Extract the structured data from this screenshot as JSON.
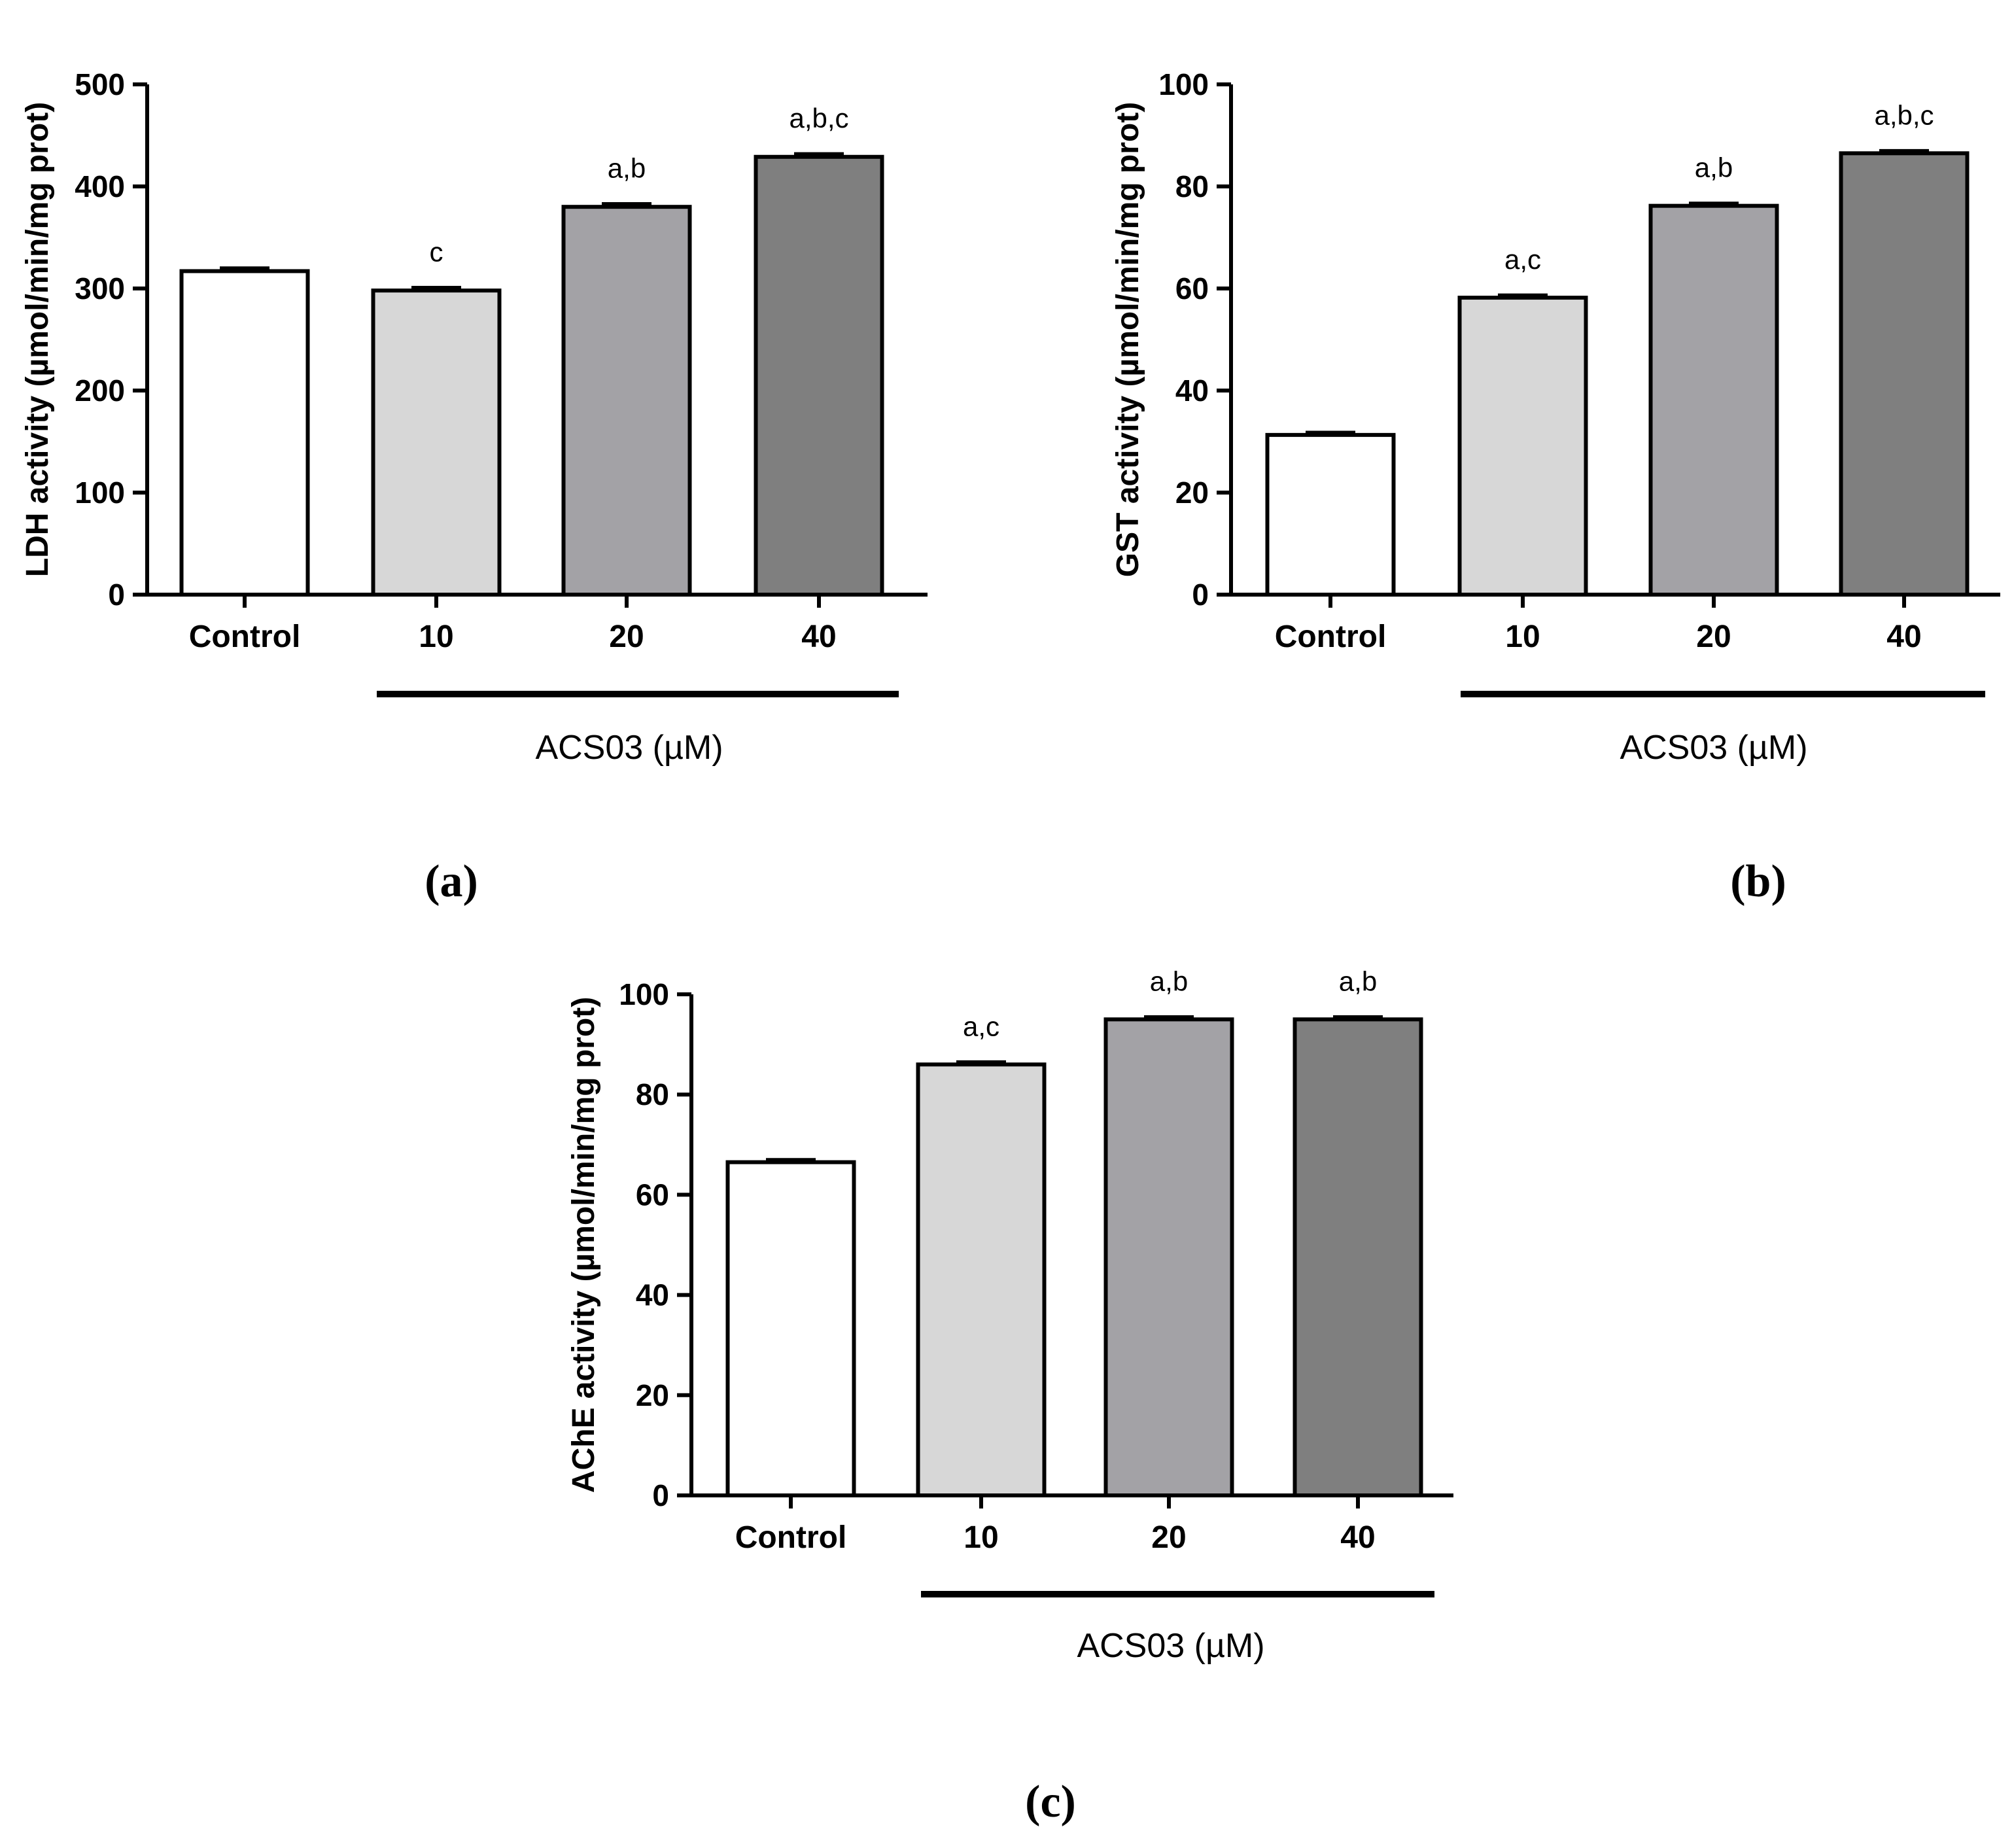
{
  "colors": {
    "control": "#ffffff",
    "dose10": "#d7d7d7",
    "dose20": "#a3a2a6",
    "dose40": "#7f7f7f",
    "axis": "#000000"
  },
  "chart_data": [
    {
      "type": "bar",
      "panel": "(a)",
      "categories": [
        "Control",
        "10",
        "20",
        "40"
      ],
      "values": [
        317,
        298,
        380,
        429
      ],
      "errors": [
        3,
        3,
        3,
        3
      ],
      "annotations": [
        "",
        "c",
        "a,b",
        "a,b,c"
      ],
      "ylabel": "LDH activity (µmol/min/mg prot)",
      "group_label": "ACS03 (µM)",
      "ylim": [
        0,
        500
      ],
      "yticks": [
        "0",
        "100",
        "200",
        "300",
        "400",
        "500"
      ]
    },
    {
      "type": "bar",
      "panel": "(b)",
      "categories": [
        "Control",
        "10",
        "20",
        "40"
      ],
      "values": [
        31.3,
        58.2,
        76.2,
        86.5
      ],
      "errors": [
        0.5,
        0.5,
        0.5,
        0.5
      ],
      "annotations": [
        "",
        "a,c",
        "a,b",
        "a,b,c"
      ],
      "ylabel": "GST activity (µmol/min/mg prot)",
      "group_label": "ACS03 (µM)",
      "ylim": [
        0,
        100
      ],
      "yticks": [
        "0",
        "20",
        "40",
        "60",
        "80",
        "100"
      ]
    },
    {
      "type": "bar",
      "panel": "(c)",
      "categories": [
        "Control",
        "10",
        "20",
        "40"
      ],
      "values": [
        66.5,
        86,
        95,
        95
      ],
      "errors": [
        0.5,
        0.5,
        0.5,
        0.5
      ],
      "annotations": [
        "",
        "a,c",
        "a,b",
        "a,b"
      ],
      "ylabel": "AChE activity (µmol/min/mg prot)",
      "group_label": "ACS03 (µM)",
      "ylim": [
        0,
        100
      ],
      "yticks": [
        "0",
        "20",
        "40",
        "60",
        "80",
        "100"
      ]
    }
  ]
}
